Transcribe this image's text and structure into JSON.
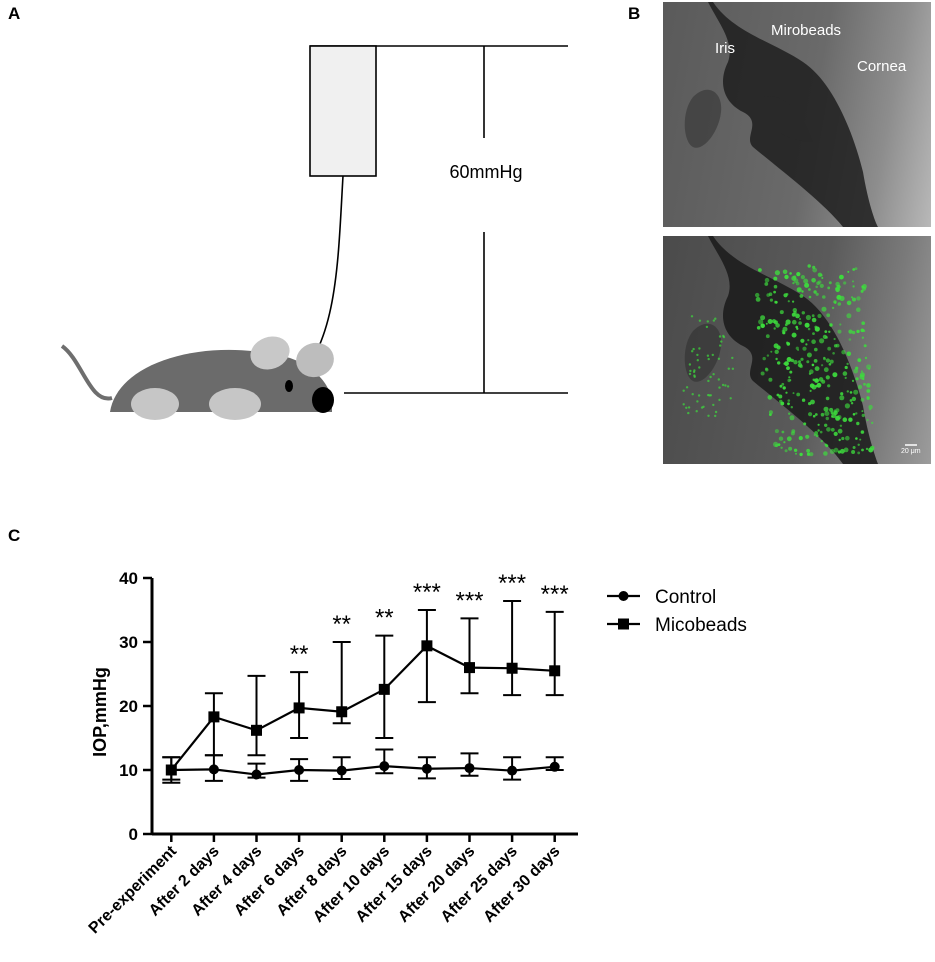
{
  "panels": {
    "a": "A",
    "b": "B",
    "c": "C"
  },
  "schematic": {
    "pressure_label": "60mmHg"
  },
  "micrograph": {
    "label_iris": "Iris",
    "label_beads": "Mirobeads",
    "label_cornea": "Cornea",
    "scale_bar": "20 μm",
    "fluorescence_color": "#3ddc3d"
  },
  "chart_data": {
    "type": "line",
    "ylabel": "IOP,mmHg",
    "xlabel": "",
    "ylim": [
      0,
      40
    ],
    "yticks": [
      0,
      10,
      20,
      30,
      40
    ],
    "categories": [
      "Pre-experiment",
      "After 2 days",
      "After 4 days",
      "After 6 days",
      "After 8 days",
      "After 10 days",
      "After 15 days",
      "After 20 days",
      "After 25 days",
      "After 30 days"
    ],
    "series": [
      {
        "name": "Control",
        "marker": "circle",
        "values": [
          10.0,
          10.1,
          9.3,
          10.0,
          9.9,
          10.6,
          10.2,
          10.3,
          9.9,
          10.5
        ],
        "err_low": [
          8.5,
          8.3,
          8.8,
          8.3,
          8.6,
          9.5,
          8.7,
          9.1,
          8.5,
          10.0
        ],
        "err_high": [
          12.0,
          12.3,
          11.0,
          11.7,
          12.0,
          13.2,
          12.0,
          12.6,
          12.0,
          12.0
        ]
      },
      {
        "name": "Micobeads",
        "marker": "square",
        "values": [
          10.0,
          18.3,
          16.2,
          19.7,
          19.1,
          22.6,
          29.4,
          26.0,
          25.9,
          25.5
        ],
        "err_low": [
          8.0,
          12.3,
          12.3,
          15.0,
          17.3,
          15.0,
          20.6,
          22.0,
          21.7,
          21.7
        ],
        "err_high": [
          12.0,
          22.0,
          24.7,
          25.3,
          30.0,
          31.0,
          35.0,
          33.7,
          36.4,
          34.7
        ]
      }
    ],
    "significance": [
      "",
      "",
      "",
      "**",
      "**",
      "**",
      "***",
      "***",
      "***",
      "***"
    ],
    "legend_position": "right",
    "grid": false
  }
}
